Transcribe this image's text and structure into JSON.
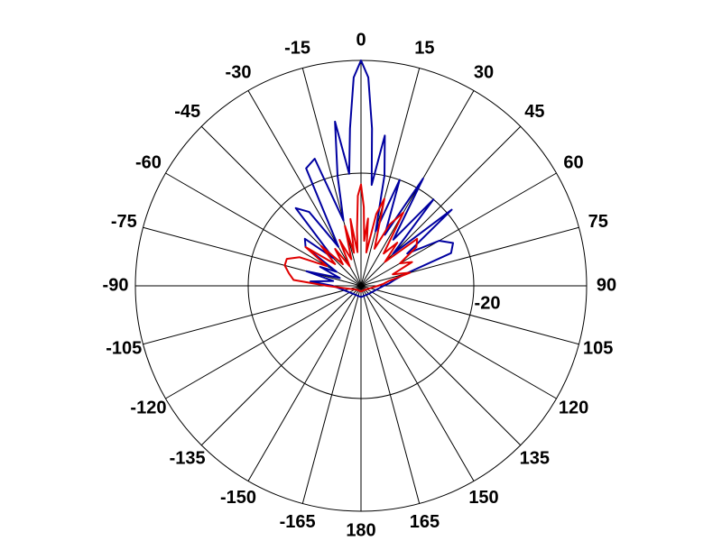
{
  "chart_data": {
    "type": "polar",
    "rlim": [
      -40,
      0
    ],
    "rticks": [
      -20
    ],
    "theta_ticks": [
      0,
      15,
      30,
      45,
      60,
      75,
      90,
      105,
      120,
      135,
      150,
      165,
      180,
      -165,
      -150,
      -135,
      -120,
      -105,
      -90,
      -75,
      -60,
      -45,
      -30,
      -15
    ],
    "theta": [
      -180,
      -135,
      -90,
      -85,
      -80,
      -75,
      -70,
      -65,
      -60,
      -55,
      -50,
      -45,
      -40,
      -35,
      -30,
      -25,
      -20,
      -15,
      -12,
      -9,
      -6,
      -4,
      -2,
      0,
      2,
      4,
      6,
      9,
      12,
      15,
      20,
      25,
      30,
      35,
      40,
      45,
      50,
      55,
      60,
      65,
      70,
      75,
      80,
      85,
      90,
      135,
      180
    ],
    "series": [
      {
        "color": "#0000a0",
        "values": [
          -38,
          -38,
          -35,
          -31,
          -35,
          -30,
          -36,
          -32,
          -35,
          -28,
          -27,
          -33,
          -22,
          -24,
          -32,
          -17,
          -16,
          -28,
          -20,
          -10.5,
          -20,
          -12,
          -3,
          0,
          -3,
          -12,
          -22,
          -13,
          -20,
          -30,
          -20,
          -30,
          -18,
          -30,
          -20,
          -32,
          -19,
          -30,
          -24,
          -22,
          -23,
          -32,
          -34,
          -35,
          -36,
          -38,
          -38
        ]
      },
      {
        "color": "#e00000",
        "values": [
          -39,
          -39,
          -34,
          -28,
          -27,
          -26,
          -26,
          -28,
          -33,
          -28,
          -34,
          -30,
          -35,
          -32,
          -36,
          -31,
          -35,
          -29,
          -34,
          -28,
          -34,
          -30,
          -24,
          -22,
          -26,
          -32,
          -28,
          -34,
          -27,
          -24,
          -33,
          -28,
          -25,
          -33,
          -30,
          -34,
          -27,
          -28,
          -32,
          -30,
          -34,
          -31,
          -35,
          -36,
          -37,
          -39,
          -39
        ]
      }
    ]
  }
}
